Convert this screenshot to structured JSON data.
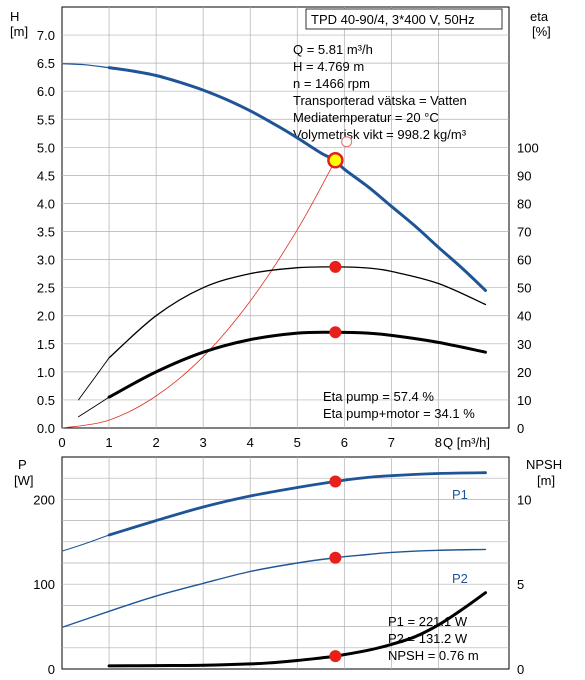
{
  "chart_data": [
    {
      "type": "line",
      "title": "TPD 40-90/4, 3*400 V, 50Hz",
      "xlabel": "Q [m³/h]",
      "ylabel_left": [
        "H",
        "[m]"
      ],
      "ylabel_right": [
        "eta",
        "[%]"
      ],
      "xlim": [
        0,
        9.5
      ],
      "ylim_left": [
        0,
        7.5
      ],
      "ylim_right": [
        0,
        100
      ],
      "x_ticks": [
        "0",
        "1",
        "2",
        "3",
        "4",
        "5",
        "6",
        "7",
        "8",
        "Q [m³/h]"
      ],
      "y_ticks_left": [
        "0.0",
        "0.5",
        "1.0",
        "1.5",
        "2.0",
        "2.5",
        "3.0",
        "3.5",
        "4.0",
        "4.5",
        "5.0",
        "5.5",
        "6.0",
        "6.5",
        "7.0"
      ],
      "y_ticks_right": [
        "0",
        "10",
        "20",
        "30",
        "40",
        "50",
        "60",
        "70",
        "80",
        "90",
        "100"
      ],
      "info_lines": [
        "Q = 5.81 m³/h",
        "H = 4.769 m",
        "n = 1466 rpm",
        "Transporterad vätska = Vatten",
        "Mediatemperatur = 20 °C",
        "Volymetrisk vikt = 998.2 kg/m³"
      ],
      "eta_lines": [
        "Eta pump = 57.4 %",
        "Eta pump+motor = 34.1 %"
      ],
      "series": [
        {
          "role": "H-curve",
          "color": "#1f5596",
          "x_dashed": [
            0,
            0.5,
            1.0
          ],
          "y_dashed": [
            6.49,
            6.47,
            6.42
          ],
          "x": [
            1.0,
            1.5,
            2.0,
            2.5,
            3.0,
            3.5,
            4.0,
            4.5,
            5.0,
            5.5,
            5.81,
            6.0,
            6.5,
            7.0,
            7.5,
            8.0,
            8.5,
            9.0
          ],
          "y": [
            6.42,
            6.36,
            6.28,
            6.16,
            6.02,
            5.85,
            5.65,
            5.42,
            5.17,
            4.9,
            4.769,
            4.61,
            4.3,
            3.95,
            3.6,
            3.22,
            2.85,
            2.45
          ]
        },
        {
          "role": "eta-pump",
          "color": "#000000",
          "axis": "right",
          "x": [
            0.35,
            1.0,
            2.0,
            3.0,
            4.0,
            5.0,
            5.81,
            6.5,
            7.0,
            8.0,
            9.0
          ],
          "y": [
            10,
            25,
            40,
            50,
            55,
            57.1,
            57.4,
            57.0,
            55.8,
            51.5,
            44
          ]
        },
        {
          "role": "eta-pump-motor",
          "color": "#000000",
          "axis": "right",
          "x": [
            0.35,
            1.0,
            2.0,
            3.0,
            4.0,
            5.0,
            5.81,
            6.5,
            7.0,
            8.0,
            9.0
          ],
          "y": [
            4,
            11,
            20,
            27,
            31.5,
            33.8,
            34.1,
            33.8,
            33.0,
            30.5,
            27
          ]
        },
        {
          "role": "system-curve",
          "color": "#e03020",
          "x": [
            0,
            1,
            2,
            3,
            4,
            5,
            5.81
          ],
          "y": [
            0,
            0.14,
            0.57,
            1.27,
            2.26,
            3.53,
            4.769
          ]
        }
      ],
      "markers": [
        {
          "x": 5.81,
          "y": 4.769,
          "kind": "duty"
        },
        {
          "x": 6.05,
          "y": 5.1,
          "kind": "open"
        },
        {
          "x": 5.81,
          "y": 57.4,
          "axis": "right",
          "kind": "point"
        },
        {
          "x": 5.81,
          "y": 34.1,
          "axis": "right",
          "kind": "point"
        }
      ]
    },
    {
      "type": "line",
      "ylabel_left": [
        "P",
        "[W]"
      ],
      "ylabel_right": [
        "NPSH",
        "[m]"
      ],
      "xlim": [
        0,
        9.5
      ],
      "ylim_left": [
        0,
        250
      ],
      "ylim_right": [
        0,
        12.5
      ],
      "y_ticks_left": [
        "0",
        "100",
        "200"
      ],
      "y_ticks_right": [
        "0",
        "5",
        "10"
      ],
      "info_lines": [
        "P1 = 221.1 W",
        "P2 = 131.2 W",
        "NPSH = 0.76 m"
      ],
      "series": [
        {
          "name": "P1",
          "color": "#1f5596",
          "x_dashed": [
            0,
            0.5,
            1.0
          ],
          "y_dashed": [
            139,
            148,
            158
          ],
          "x": [
            1.0,
            2.0,
            3.0,
            4.0,
            5.0,
            5.81,
            6.5,
            7.0,
            8.0,
            9.0
          ],
          "y": [
            158,
            175,
            191,
            204,
            214,
            221.1,
            226,
            228,
            230.5,
            231.5
          ]
        },
        {
          "name": "P2",
          "color": "#1f5596",
          "x": [
            0,
            1.0,
            2.0,
            3.0,
            4.0,
            5.0,
            5.81,
            6.5,
            7.0,
            8.0,
            9.0
          ],
          "y": [
            49,
            68,
            86,
            101,
            115,
            125,
            131.2,
            135,
            137.5,
            140,
            141
          ]
        },
        {
          "role": "NPSH",
          "color": "#000000",
          "axis": "right",
          "x": [
            1.0,
            2.0,
            3.0,
            4.0,
            4.5,
            5.0,
            5.5,
            5.81,
            6.5,
            7.0,
            7.5,
            8.0,
            8.5,
            9.0
          ],
          "y": [
            0.18,
            0.2,
            0.22,
            0.3,
            0.38,
            0.5,
            0.65,
            0.76,
            1.1,
            1.45,
            1.9,
            2.6,
            3.5,
            4.5
          ]
        }
      ],
      "markers": [
        {
          "x": 5.81,
          "y": 221.1,
          "kind": "point"
        },
        {
          "x": 5.81,
          "y": 131.2,
          "kind": "point"
        },
        {
          "x": 5.81,
          "y": 0.76,
          "axis": "right",
          "kind": "point"
        }
      ]
    }
  ]
}
